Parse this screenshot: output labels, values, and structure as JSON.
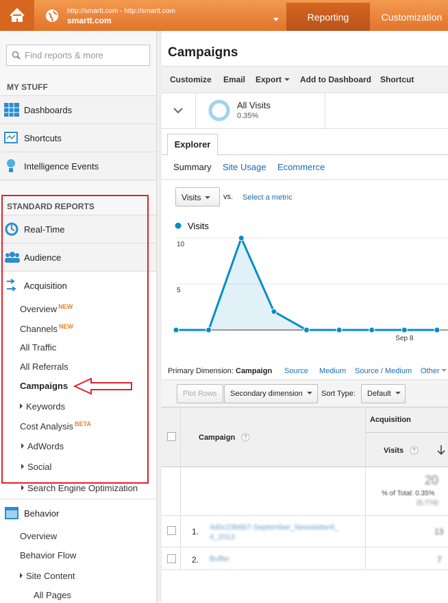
{
  "header": {
    "site_url": "http://smartt.com - http://smartt.com",
    "site_name": "smartt.com",
    "tabs": [
      "Reporting",
      "Customization"
    ]
  },
  "sidebar": {
    "search_placeholder": "Find reports & more",
    "my_stuff": {
      "title": "MY STUFF",
      "items": [
        "Dashboards",
        "Shortcuts",
        "Intelligence Events"
      ]
    },
    "standard_reports": {
      "title": "STANDARD REPORTS",
      "sections": [
        "Real-Time",
        "Audience",
        "Acquisition"
      ],
      "acquisition_items": [
        {
          "label": "Overview",
          "badge": "NEW"
        },
        {
          "label": "Channels",
          "badge": "NEW"
        },
        {
          "label": "All Traffic"
        },
        {
          "label": "All Referrals"
        },
        {
          "label": "Campaigns"
        },
        {
          "label": "Keywords"
        },
        {
          "label": "Cost Analysis",
          "badge": "BETA"
        },
        {
          "label": "AdWords"
        },
        {
          "label": "Social"
        },
        {
          "label": "Search Engine Optimization"
        }
      ],
      "behavior": {
        "label": "Behavior",
        "items": [
          "Overview",
          "Behavior Flow",
          "Site Content",
          "All Pages"
        ]
      }
    }
  },
  "main": {
    "title": "Campaigns",
    "toolbar": [
      "Customize",
      "Email",
      "Export",
      "Add to Dashboard",
      "Shortcut"
    ],
    "segment": {
      "name": "All Visits",
      "percent": "0.35%"
    },
    "explorer_tab": "Explorer",
    "subtabs": [
      "Summary",
      "Site Usage",
      "Ecommerce"
    ],
    "metric_select": "Visits",
    "vs": "vs.",
    "select_metric": "Select a metric",
    "primary_dimension": {
      "label": "Primary Dimension:",
      "options": [
        "Campaign",
        "Source",
        "Medium",
        "Source / Medium",
        "Other"
      ]
    },
    "controls": {
      "plot_rows": "Plot Rows",
      "secondary_dimension": "Secondary dimension",
      "sort_type": "Sort Type:",
      "sort_default": "Default"
    }
  },
  "chart_data": {
    "type": "line",
    "categories": [
      null,
      null,
      null,
      null,
      null,
      null,
      null,
      "Sep 8",
      null
    ],
    "series": [
      {
        "name": "Visits",
        "color": "#058dc7",
        "values": [
          0,
          0,
          10,
          2,
          0,
          0,
          0,
          0,
          0
        ]
      }
    ],
    "ylim": [
      0,
      10
    ],
    "yticks": [
      5,
      10
    ],
    "grid": true
  },
  "table": {
    "headers": {
      "campaign": "Campaign",
      "group": "Acquisition",
      "visits": "Visits"
    },
    "totals": {
      "visits": "20",
      "percent_label": "% of Total: 0.35%",
      "total": "(5,774)"
    },
    "rows": [
      [
        "1.",
        "4d0c23b6b7-September_Newsletter6_4_2013",
        "13"
      ],
      [
        "2.",
        "Buffer",
        "7"
      ]
    ]
  }
}
